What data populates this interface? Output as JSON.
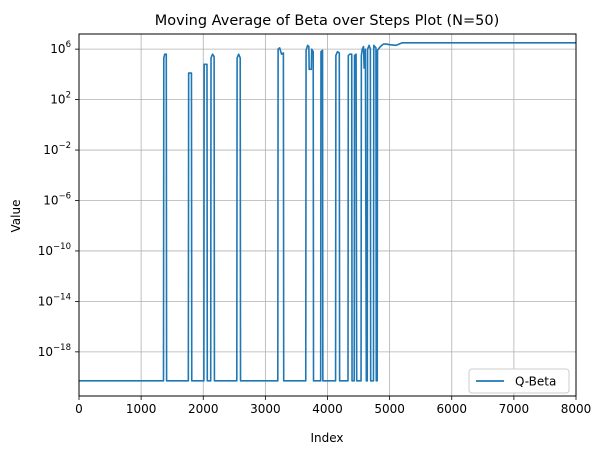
{
  "chart_data": {
    "type": "line",
    "title": "Moving Average of Beta over Steps Plot (N=50)",
    "xlabel": "Index",
    "ylabel": "Value",
    "xlim": [
      0,
      8000
    ],
    "ylim_exponent": [
      -21.5,
      7.2
    ],
    "yscale": "log",
    "grid": true,
    "legend_position": "lower-right",
    "x_ticks": [
      "0",
      "1000",
      "2000",
      "3000",
      "4000",
      "5000",
      "6000",
      "7000",
      "8000"
    ],
    "y_ticks": [
      {
        "base": "10",
        "exp": "6",
        "value_exp": 6
      },
      {
        "base": "10",
        "exp": "2",
        "value_exp": 2
      },
      {
        "base": "10",
        "exp": "−2",
        "value_exp": -2
      },
      {
        "base": "10",
        "exp": "−6",
        "value_exp": -6
      },
      {
        "base": "10",
        "exp": "−10",
        "value_exp": -10
      },
      {
        "base": "10",
        "exp": "−14",
        "value_exp": -14
      },
      {
        "base": "10",
        "exp": "−18",
        "value_exp": -18
      }
    ],
    "series": [
      {
        "name": "Q-Beta",
        "color": "#1f77b4",
        "baseline_exp": -20.3,
        "points_log10": [
          [
            0,
            -20.3
          ],
          [
            1360,
            -20.3
          ],
          [
            1365,
            5.3
          ],
          [
            1380,
            5.6
          ],
          [
            1405,
            5.6
          ],
          [
            1410,
            -20.3
          ],
          [
            1760,
            -20.3
          ],
          [
            1765,
            4.1
          ],
          [
            1810,
            4.1
          ],
          [
            1815,
            -20.3
          ],
          [
            2010,
            -20.3
          ],
          [
            2015,
            4.8
          ],
          [
            2060,
            4.8
          ],
          [
            2065,
            -20.3
          ],
          [
            2120,
            -20.3
          ],
          [
            2125,
            5.3
          ],
          [
            2150,
            5.6
          ],
          [
            2175,
            5.4
          ],
          [
            2180,
            -20.3
          ],
          [
            2540,
            -20.3
          ],
          [
            2545,
            5.3
          ],
          [
            2570,
            5.6
          ],
          [
            2595,
            5.3
          ],
          [
            2600,
            -20.3
          ],
          [
            3200,
            -20.3
          ],
          [
            3205,
            6.0
          ],
          [
            3230,
            6.1
          ],
          [
            3260,
            5.6
          ],
          [
            3290,
            5.7
          ],
          [
            3295,
            -20.3
          ],
          [
            3650,
            -20.3
          ],
          [
            3655,
            5.9
          ],
          [
            3680,
            6.3
          ],
          [
            3700,
            6.2
          ],
          [
            3705,
            4.4
          ],
          [
            3740,
            4.4
          ],
          [
            3745,
            6.0
          ],
          [
            3770,
            5.8
          ],
          [
            3775,
            -20.3
          ],
          [
            3890,
            -20.3
          ],
          [
            3895,
            5.8
          ],
          [
            3920,
            5.9
          ],
          [
            3925,
            -20.3
          ],
          [
            4130,
            -20.3
          ],
          [
            4135,
            5.5
          ],
          [
            4160,
            5.8
          ],
          [
            4190,
            5.7
          ],
          [
            4195,
            -20.3
          ],
          [
            4330,
            -20.3
          ],
          [
            4335,
            5.5
          ],
          [
            4360,
            5.6
          ],
          [
            4385,
            5.6
          ],
          [
            4390,
            5.6
          ],
          [
            4395,
            -20.3
          ],
          [
            4430,
            -20.3
          ],
          [
            4435,
            5.5
          ],
          [
            4460,
            5.6
          ],
          [
            4470,
            -20.3
          ],
          [
            4540,
            -20.3
          ],
          [
            4545,
            5.5
          ],
          [
            4560,
            6.0
          ],
          [
            4580,
            6.2
          ],
          [
            4590,
            4.5
          ],
          [
            4610,
            6.0
          ],
          [
            4625,
            -20.3
          ],
          [
            4640,
            -20.3
          ],
          [
            4645,
            6.0
          ],
          [
            4670,
            6.3
          ],
          [
            4690,
            6.0
          ],
          [
            4695,
            -20.3
          ],
          [
            4740,
            -20.3
          ],
          [
            4745,
            6.3
          ],
          [
            4780,
            6.1
          ],
          [
            4785,
            -20.3
          ],
          [
            4800,
            -20.3
          ],
          [
            4805,
            5.9
          ],
          [
            4850,
            6.2
          ],
          [
            4900,
            6.4
          ],
          [
            4950,
            6.4
          ],
          [
            5000,
            6.35
          ],
          [
            5100,
            6.3
          ],
          [
            5200,
            6.5
          ],
          [
            5400,
            6.5
          ],
          [
            5800,
            6.5
          ],
          [
            6500,
            6.5
          ],
          [
            7200,
            6.5
          ],
          [
            8000,
            6.5
          ]
        ]
      }
    ]
  }
}
